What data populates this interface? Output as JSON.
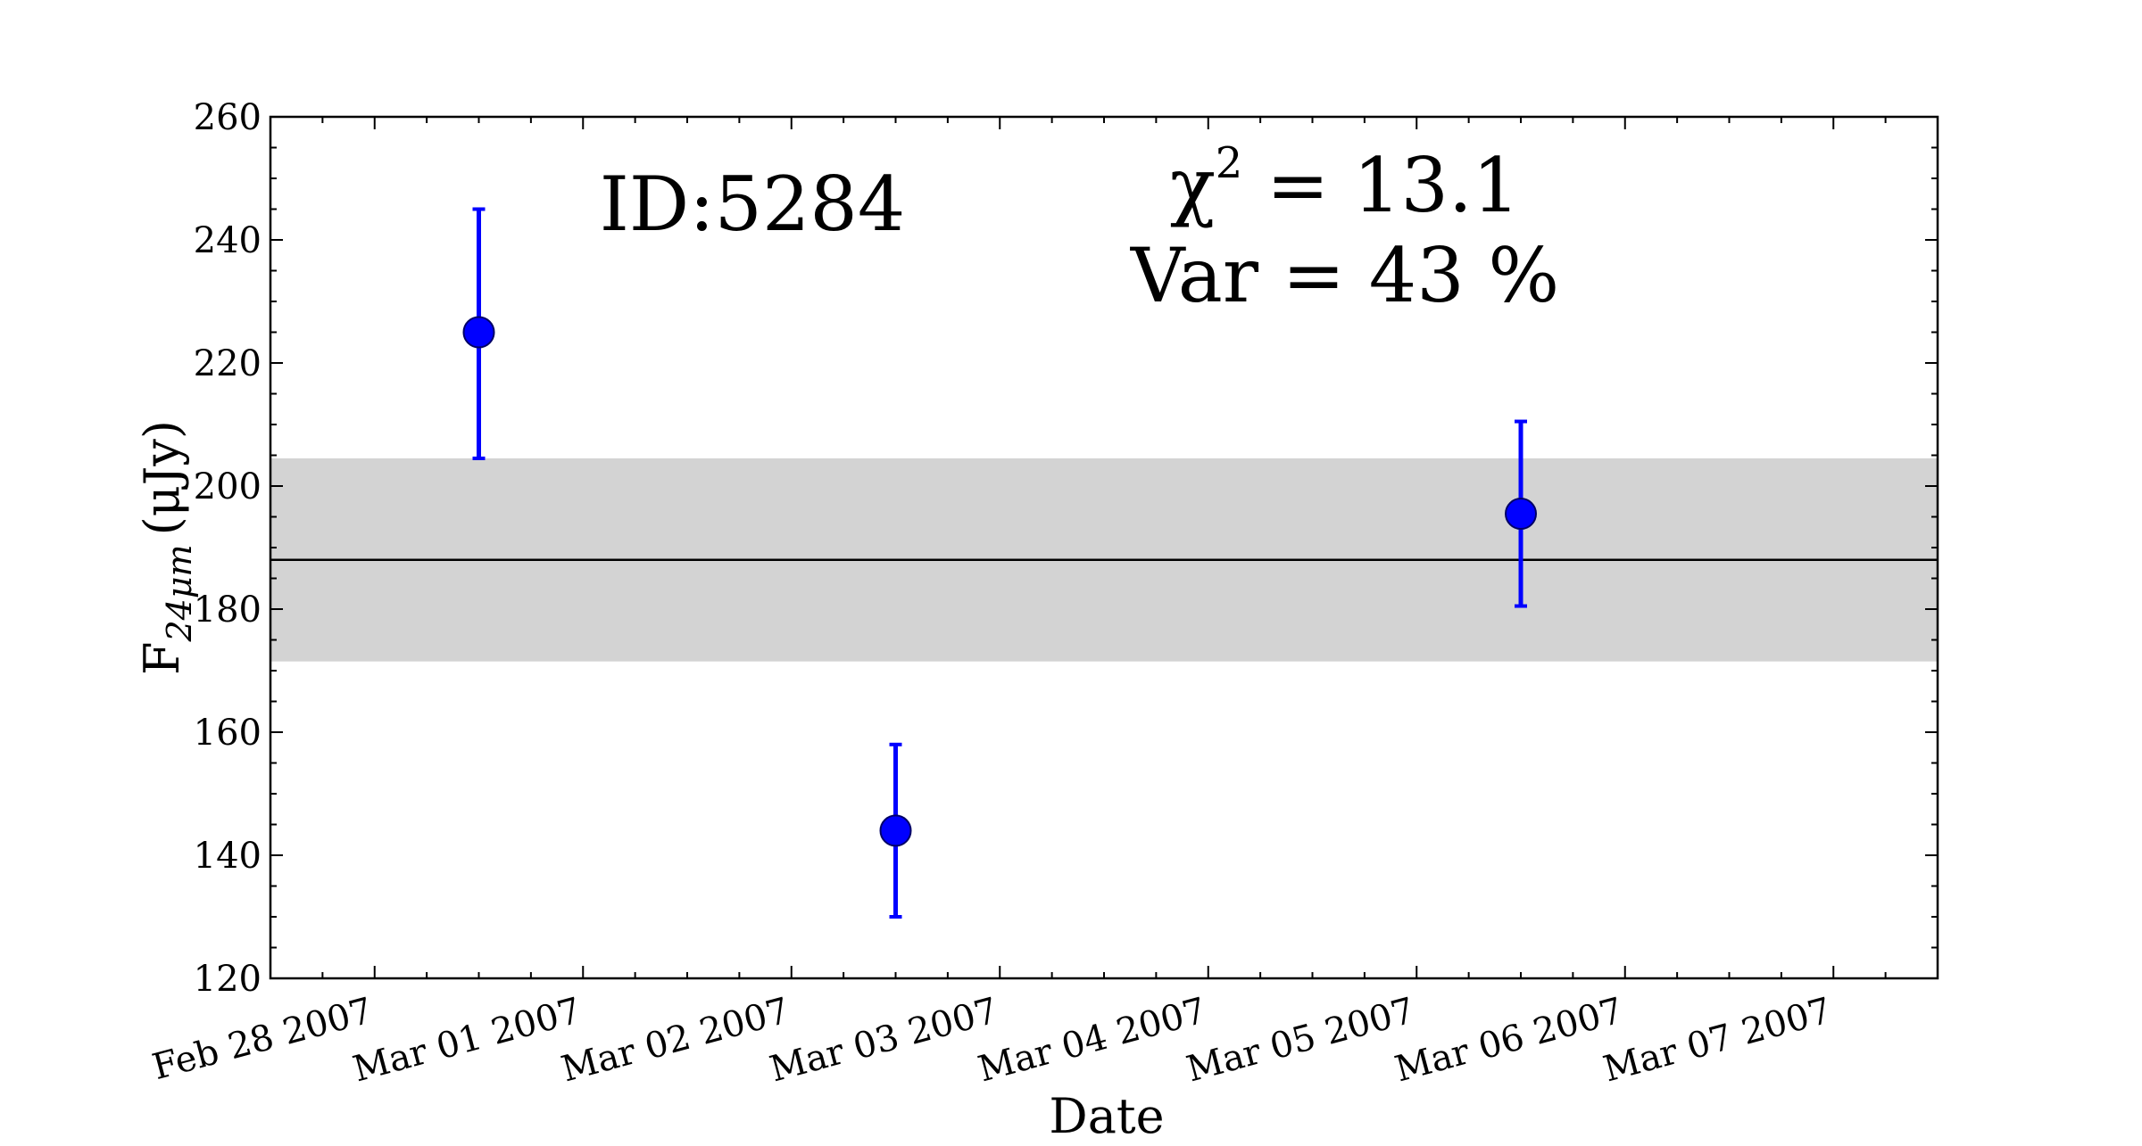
{
  "chart_data": {
    "type": "scatter",
    "xlabel": "Date",
    "ylabel_main": "F",
    "ylabel_sub": "24μm",
    "ylabel_unit": "(μJy)",
    "ylim": [
      120,
      260
    ],
    "y_ticks": [
      120,
      140,
      160,
      180,
      200,
      220,
      240,
      260
    ],
    "xlim": [
      "2007-02-27T12:00",
      "2007-03-07T12:00"
    ],
    "x_ticks": [
      {
        "date": "2007-02-28T00:00",
        "label": "Feb 28 2007"
      },
      {
        "date": "2007-03-01T00:00",
        "label": "Mar 01 2007"
      },
      {
        "date": "2007-03-02T00:00",
        "label": "Mar 02 2007"
      },
      {
        "date": "2007-03-03T00:00",
        "label": "Mar 03 2007"
      },
      {
        "date": "2007-03-04T00:00",
        "label": "Mar 04 2007"
      },
      {
        "date": "2007-03-05T00:00",
        "label": "Mar 05 2007"
      },
      {
        "date": "2007-03-06T00:00",
        "label": "Mar 06 2007"
      },
      {
        "date": "2007-03-07T00:00",
        "label": "Mar 07 2007"
      }
    ],
    "points": [
      {
        "date": "2007-02-28T12:00",
        "y": 225,
        "yerr_low": 204.5,
        "yerr_high": 245
      },
      {
        "date": "2007-03-02T12:00",
        "y": 144,
        "yerr_low": 130,
        "yerr_high": 158
      },
      {
        "date": "2007-03-05T12:00",
        "y": 195.5,
        "yerr_low": 180.5,
        "yerr_high": 210.5
      }
    ],
    "mean_line": 188,
    "band": [
      171.5,
      204.5
    ],
    "point_color": "#0000ff",
    "point_edge_color": "#000066",
    "band_color": "#d3d3d3",
    "grid": false,
    "annotations": {
      "id": "ID:5284",
      "chi2": "χ² = 13.1",
      "chi2_symbol": "χ",
      "chi2_sup": "2",
      "chi2_value": " = 13.1",
      "var": "Var = 43 %"
    }
  }
}
